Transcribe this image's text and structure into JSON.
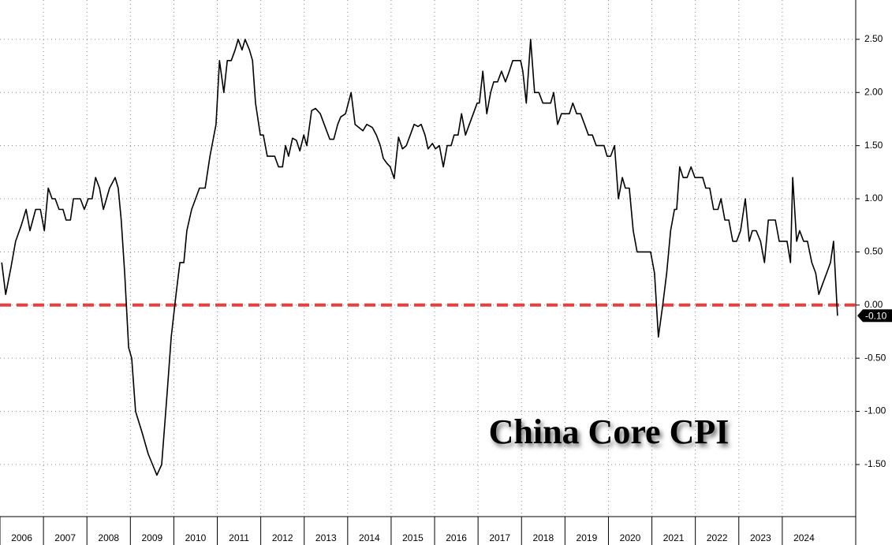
{
  "chart_data": {
    "type": "line",
    "annotation": "China Core CPI",
    "x": [
      2006.04,
      2006.13,
      2006.25,
      2006.36,
      2006.49,
      2006.6,
      2006.69,
      2006.82,
      2006.93,
      2007.02,
      2007.11,
      2007.2,
      2007.27,
      2007.36,
      2007.45,
      2007.52,
      2007.62,
      2007.69,
      2007.85,
      2007.94,
      2008.03,
      2008.12,
      2008.2,
      2008.29,
      2008.38,
      2008.52,
      2008.65,
      2008.72,
      2008.79,
      2008.87,
      2008.96,
      2009.03,
      2009.12,
      2009.27,
      2009.41,
      2009.61,
      2009.72,
      2009.85,
      2009.94,
      2010.05,
      2010.14,
      2010.23,
      2010.3,
      2010.41,
      2010.5,
      2010.59,
      2010.72,
      2010.83,
      2010.97,
      2011.05,
      2011.15,
      2011.23,
      2011.32,
      2011.41,
      2011.48,
      2011.57,
      2011.64,
      2011.74,
      2011.81,
      2011.88,
      2011.99,
      2012.06,
      2012.15,
      2012.32,
      2012.41,
      2012.5,
      2012.57,
      2012.64,
      2012.73,
      2012.82,
      2012.9,
      2012.99,
      2013.06,
      2013.17,
      2013.26,
      2013.37,
      2013.46,
      2013.59,
      2013.68,
      2013.77,
      2013.84,
      2013.95,
      2014.08,
      2014.17,
      2014.26,
      2014.35,
      2014.44,
      2014.57,
      2014.66,
      2014.75,
      2014.82,
      2014.91,
      2014.98,
      2015.07,
      2015.17,
      2015.26,
      2015.35,
      2015.44,
      2015.53,
      2015.62,
      2015.69,
      2015.78,
      2015.85,
      2015.95,
      2016.02,
      2016.11,
      2016.2,
      2016.29,
      2016.38,
      2016.45,
      2016.54,
      2016.62,
      2016.71,
      2016.8,
      2016.89,
      2016.98,
      2017.03,
      2017.11,
      2017.2,
      2017.29,
      2017.36,
      2017.45,
      2017.54,
      2017.63,
      2017.72,
      2017.8,
      2017.89,
      2017.98,
      2018.03,
      2018.11,
      2018.21,
      2018.3,
      2018.4,
      2018.49,
      2018.58,
      2018.67,
      2018.74,
      2018.83,
      2018.92,
      2019.01,
      2019.1,
      2019.18,
      2019.27,
      2019.36,
      2019.45,
      2019.54,
      2019.63,
      2019.72,
      2019.79,
      2019.9,
      2019.97,
      2020.05,
      2020.14,
      2020.23,
      2020.32,
      2020.39,
      2020.48,
      2020.57,
      2020.66,
      2020.97,
      2021.06,
      2021.15,
      2021.25,
      2021.34,
      2021.43,
      2021.52,
      2021.57,
      2021.64,
      2021.72,
      2021.81,
      2021.9,
      2021.99,
      2022.08,
      2022.17,
      2022.24,
      2022.33,
      2022.42,
      2022.52,
      2022.59,
      2022.68,
      2022.77,
      2022.86,
      2022.95,
      2023.04,
      2023.15,
      2023.24,
      2023.31,
      2023.4,
      2023.5,
      2023.59,
      2023.68,
      2023.84,
      2023.93,
      2024.02,
      2024.11,
      2024.19,
      2024.24,
      2024.33,
      2024.4,
      2024.49,
      2024.58,
      2024.68,
      2024.77,
      2024.84,
      2024.93,
      2025.02,
      2025.11,
      2025.18,
      2025.27
    ],
    "series": [
      {
        "color": "#000000",
        "values": [
          0.4,
          0.1,
          0.35,
          0.6,
          0.75,
          0.9,
          0.7,
          0.9,
          0.9,
          0.7,
          1.1,
          1.0,
          1.0,
          0.9,
          0.9,
          0.8,
          0.8,
          1.0,
          1.0,
          0.9,
          1.0,
          1.0,
          1.2,
          1.1,
          0.9,
          1.1,
          1.2,
          1.1,
          0.8,
          0.3,
          -0.4,
          -0.5,
          -1.0,
          -1.2,
          -1.4,
          -1.6,
          -1.5,
          -0.8,
          -0.3,
          0.1,
          0.4,
          0.4,
          0.7,
          0.9,
          1.0,
          1.1,
          1.1,
          1.4,
          1.7,
          2.3,
          2.0,
          2.3,
          2.3,
          2.4,
          2.5,
          2.4,
          2.5,
          2.4,
          2.3,
          1.9,
          1.6,
          1.6,
          1.4,
          1.4,
          1.3,
          1.3,
          1.5,
          1.4,
          1.57,
          1.55,
          1.45,
          1.6,
          1.5,
          1.83,
          1.85,
          1.8,
          1.7,
          1.56,
          1.56,
          1.7,
          1.77,
          1.8,
          2.0,
          1.7,
          1.67,
          1.64,
          1.7,
          1.67,
          1.6,
          1.5,
          1.38,
          1.33,
          1.3,
          1.19,
          1.58,
          1.47,
          1.5,
          1.6,
          1.7,
          1.68,
          1.7,
          1.6,
          1.47,
          1.52,
          1.47,
          1.5,
          1.3,
          1.5,
          1.5,
          1.6,
          1.6,
          1.8,
          1.6,
          1.7,
          1.8,
          1.9,
          1.9,
          2.2,
          1.8,
          2.0,
          2.1,
          2.1,
          2.2,
          2.1,
          2.2,
          2.3,
          2.3,
          2.3,
          2.2,
          1.9,
          2.5,
          2.0,
          2.0,
          1.9,
          1.9,
          1.9,
          2.0,
          1.7,
          1.8,
          1.8,
          1.8,
          1.9,
          1.8,
          1.8,
          1.7,
          1.6,
          1.6,
          1.5,
          1.5,
          1.5,
          1.4,
          1.4,
          1.5,
          1.0,
          1.2,
          1.1,
          1.1,
          0.7,
          0.5,
          0.5,
          0.3,
          -0.3,
          0.0,
          0.3,
          0.7,
          0.9,
          0.9,
          1.3,
          1.2,
          1.2,
          1.3,
          1.2,
          1.2,
          1.2,
          1.1,
          1.1,
          0.9,
          0.9,
          1.0,
          0.8,
          0.8,
          0.6,
          0.6,
          0.7,
          1.0,
          0.6,
          0.7,
          0.7,
          0.6,
          0.4,
          0.8,
          0.8,
          0.6,
          0.6,
          0.6,
          0.4,
          1.2,
          0.6,
          0.7,
          0.6,
          0.6,
          0.4,
          0.3,
          0.1,
          0.2,
          0.3,
          0.4,
          0.6,
          -0.1
        ]
      }
    ],
    "last_value_label": "-0.10",
    "reference_line": {
      "value": 0,
      "color": "#e8403f"
    },
    "xlim": [
      2006,
      2025.69
    ],
    "xticks": [
      2006,
      2007,
      2008,
      2009,
      2010,
      2011,
      2012,
      2013,
      2014,
      2015,
      2016,
      2017,
      2018,
      2019,
      2020,
      2021,
      2022,
      2023,
      2024
    ],
    "ylim": [
      -1.99,
      2.87
    ],
    "yticks": [
      {
        "value": -1.5,
        "label": "-1.50"
      },
      {
        "value": -1,
        "label": "-1.00"
      },
      {
        "value": -0.5,
        "label": "-0.50"
      },
      {
        "value": 0,
        "label": "0.00"
      },
      {
        "value": 0.5,
        "label": "0.50"
      },
      {
        "value": 1,
        "label": "1.00"
      },
      {
        "value": 1.5,
        "label": "1.50"
      },
      {
        "value": 2,
        "label": "2.00"
      },
      {
        "value": 2.5,
        "label": "2.50"
      }
    ],
    "grid": true
  }
}
